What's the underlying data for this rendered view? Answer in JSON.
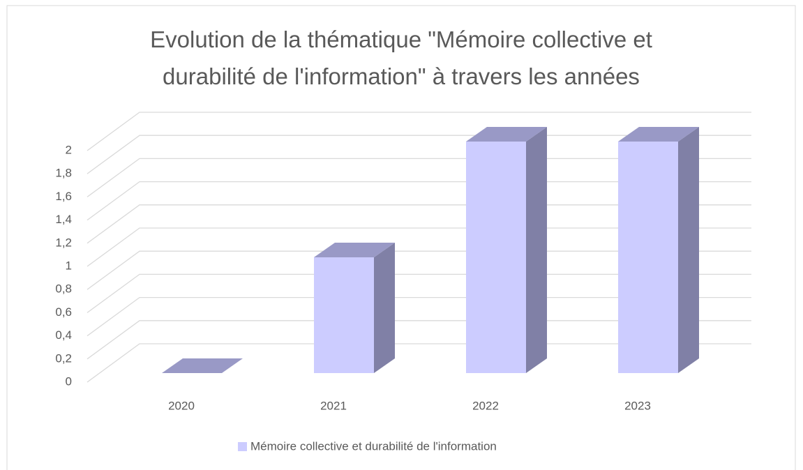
{
  "chart_data": {
    "type": "bar3d",
    "title": "Evolution de la thématique \"Mémoire collective et durabilité de l'information\" à travers les années",
    "categories": [
      "2020",
      "2021",
      "2022",
      "2023"
    ],
    "series": [
      {
        "name": "Mémoire collective et durabilité de l'information",
        "color": "#ccccff",
        "values": [
          0,
          1,
          2,
          2
        ]
      }
    ],
    "ylim": [
      0,
      2
    ],
    "yticks": [
      0,
      {
        "value": 0.2,
        "label": "0,2"
      },
      {
        "value": 0.4,
        "label": "0,4"
      },
      {
        "value": 0.6,
        "label": "0,6"
      },
      {
        "value": 0.8,
        "label": "0,8"
      },
      1,
      {
        "value": 1.2,
        "label": "1,2"
      },
      {
        "value": 1.4,
        "label": "1,4"
      },
      {
        "value": 1.6,
        "label": "1,6"
      },
      {
        "value": 1.8,
        "label": "1,8"
      },
      2
    ],
    "grid": true,
    "legend": "bottom"
  }
}
